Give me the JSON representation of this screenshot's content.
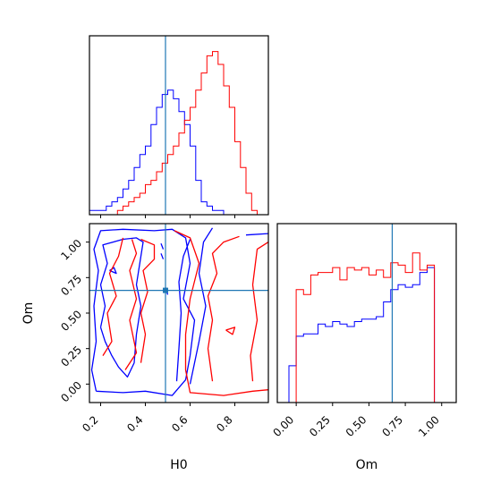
{
  "colors": {
    "series_a": "#0000ff",
    "series_b": "#ff0000",
    "truth": "#1f77b4",
    "frame": "#000000"
  },
  "truth": {
    "H0": 0.49,
    "Om": 0.66
  },
  "chart_data": [
    {
      "panel": "H0-marginal",
      "type": "histogram-step",
      "xlabel": "",
      "ylabel": "",
      "xlim": [
        0.15,
        0.95
      ],
      "bin_width": 0.025,
      "bin_start": 0.15,
      "series": [
        {
          "color": "#0000ff",
          "values": [
            1,
            1,
            1,
            2,
            3,
            4,
            6,
            8,
            11,
            14,
            16,
            21,
            25,
            28,
            29,
            27,
            24,
            21,
            16,
            8,
            3,
            2,
            1,
            1,
            0,
            0,
            0,
            0,
            0,
            0,
            0,
            0
          ]
        },
        {
          "color": "#ff0000",
          "values": [
            0,
            0,
            0,
            0,
            0,
            1,
            2,
            3,
            4,
            5,
            7,
            8,
            10,
            12,
            14,
            16,
            19,
            22,
            25,
            29,
            33,
            37,
            38,
            35,
            30,
            25,
            17,
            11,
            5,
            1,
            0,
            0
          ]
        }
      ]
    },
    {
      "panel": "H0-Om-joint",
      "type": "contour",
      "xlabel": "H0",
      "ylabel": "Om",
      "xlim": [
        0.15,
        0.95
      ],
      "ylim": [
        -0.13,
        1.13
      ],
      "xticks": [
        "0.2",
        "0.4",
        "0.6",
        "0.8"
      ],
      "yticks": [
        "0.00",
        "0.25",
        "0.50",
        "0.75",
        "1.00"
      ],
      "xtick_values": [
        0.2,
        0.4,
        0.6,
        0.8
      ],
      "ytick_values": [
        0,
        0.25,
        0.5,
        0.75,
        1.0
      ]
    },
    {
      "panel": "Om-marginal",
      "type": "histogram-step",
      "xlabel": "Om",
      "ylabel": "",
      "xlim": [
        -0.13,
        1.1
      ],
      "bin_width": 0.05,
      "bin_start": -0.15,
      "xticks": [
        "0.00",
        "0.25",
        "0.50",
        "0.75",
        "1.00"
      ],
      "xtick_values": [
        0,
        0.25,
        0.5,
        0.75,
        1.0
      ],
      "series": [
        {
          "color": "#0000ff",
          "values": [
            0,
            0,
            15,
            27,
            28,
            28,
            32,
            31,
            33,
            32,
            31,
            33,
            34,
            34,
            35,
            41,
            46,
            48,
            47,
            48,
            53,
            55,
            0
          ]
        },
        {
          "color": "#ff0000",
          "values": [
            0,
            0,
            0,
            46,
            44,
            52,
            53,
            53,
            55,
            50,
            55,
            54,
            55,
            52,
            54,
            51,
            57,
            56,
            53,
            61,
            54,
            56,
            0
          ]
        }
      ]
    }
  ]
}
